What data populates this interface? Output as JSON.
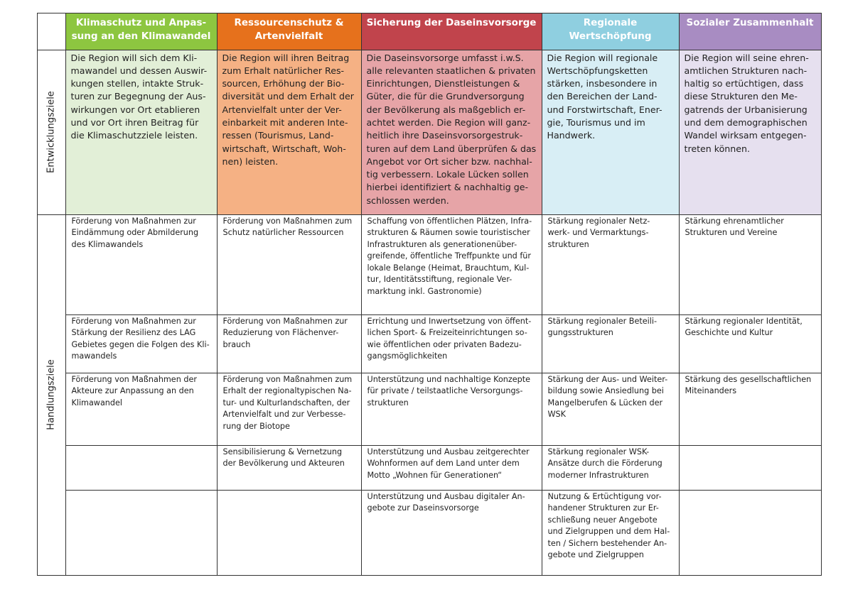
{
  "header": {
    "columns": [
      {
        "lines": [
          "Klimaschutz und Anpas-",
          "sung an den Klimawandel"
        ]
      },
      {
        "lines": [
          "Ressourcenschutz &",
          "Artenvielfalt"
        ]
      },
      {
        "lines": [
          "Sicherung der Daseinsvorsorge"
        ]
      },
      {
        "lines": [
          "Regionale",
          "Wertschöpfung"
        ]
      },
      {
        "lines": [
          "Sozialer Zusammenhalt"
        ]
      }
    ]
  },
  "sections": [
    {
      "label": "Entwicklungsziele",
      "rows": [
        [
          [
            "Die Region will sich dem Kli-",
            "mawandel und dessen Auswir-",
            "kungen stellen, intakte Struk-",
            "turen zur Begegnung der Aus-",
            "wirkungen vor Ort etablieren",
            "und vor Ort ihren Beitrag für",
            "die Klimaschutzziele leisten."
          ],
          [
            "Die Region will ihren Beitrag",
            "zum Erhalt natürlicher Res-",
            "sourcen, Erhöhung der Bio-",
            "diversität und dem Erhalt der",
            "Artenvielfalt unter der Ver-",
            "einbarkeit mit anderen Inte-",
            "ressen (Tourismus, Land-",
            "wirtschaft, Wirtschaft, Woh-",
            "nen) leisten."
          ],
          [
            "Die Daseinsvorsorge umfasst i.w.S.",
            "alle relevanten staatlichen & privaten",
            "Einrichtungen, Dienstleistungen &",
            "Güter, die für die Grundversorgung",
            "der Bevölkerung als maßgeblich er-",
            "achtet werden. Die Region will ganz-",
            "heitlich ihre Daseinsvorsorgestruk-",
            "turen auf dem Land überprüfen & das",
            "Angebot vor Ort sicher bzw. nachhal-",
            "tig verbessern. Lokale Lücken sollen",
            "hierbei identifiziert & nachhaltig ge-",
            "schlossen werden."
          ],
          [
            "Die Region will regionale",
            "Wertschöpfungsketten",
            "stärken, insbesondere in",
            "den Bereichen der Land-",
            "und Forstwirtschaft, Ener-",
            "gie, Tourismus und im",
            "Handwerk."
          ],
          [
            "Die Region will seine ehren-",
            "amtlichen Strukturen nach-",
            "haltig so ertüchtigen, dass",
            "diese Strukturen den Me-",
            "gatrends der Urbanisierung",
            "und dem demographischen",
            "Wandel wirksam entgegen-",
            "treten können."
          ]
        ]
      ]
    },
    {
      "label": "Handlungsziele",
      "rows": [
        [
          [
            "Förderung von Maßnahmen zur",
            "Eindämmung oder Abmilderung",
            "des Klimawandels"
          ],
          [
            "Förderung von Maßnahmen zum",
            "Schutz natürlicher Ressourcen"
          ],
          [
            "Schaffung von öffentlichen Plätzen, Infra-",
            "strukturen & Räumen sowie touristischer",
            "Infrastrukturen als generationenüber-",
            "greifende, öffentliche Treffpunkte und für",
            "lokale Belange (Heimat, Brauchtum, Kul-",
            "tur, Identitätsstiftung, regionale Ver-",
            "marktung inkl. Gastronomie)"
          ],
          [
            "Stärkung regionaler Netz-",
            "werk- und Vermarktungs-",
            "strukturen"
          ],
          [
            "Stärkung ehrenamtlicher",
            "Strukturen und Vereine"
          ]
        ],
        [
          [
            "Förderung von Maßnahmen zur",
            "Stärkung der Resilienz des LAG",
            "Gebietes gegen die Folgen des Kli-",
            "mawandels"
          ],
          [
            "Förderung von Maßnahmen zur",
            "Reduzierung von Flächenver-",
            "brauch"
          ],
          [
            "Errichtung und Inwertsetzung von öffent-",
            "lichen Sport- & Freizeiteinrichtungen so-",
            "wie öffentlichen oder privaten Badezu-",
            "gangsmöglichkeiten"
          ],
          [
            "Stärkung regionaler Beteili-",
            "gungsstrukturen"
          ],
          [
            "Stärkung regionaler Identität,",
            "Geschichte und Kultur"
          ]
        ],
        [
          [
            "Förderung von Maßnahmen der",
            "Akteure zur Anpassung an den",
            "Klimawandel"
          ],
          [
            "Förderung von Maßnahmen zum",
            "Erhalt der regionaltypischen Na-",
            "tur- und Kulturlandschaften, der",
            "Artenvielfalt und zur Verbesse-",
            "rung der Biotope"
          ],
          [
            "Unterstützung und nachhaltige Konzepte",
            "für private / teilstaatliche Versorgungs-",
            "strukturen"
          ],
          [
            "Stärkung der Aus- und Weiter-",
            "bildung sowie Ansiedlung bei",
            "Mangelberufen & Lücken der",
            "WSK"
          ],
          [
            "Stärkung des gesellschaftlichen",
            "Miteinanders"
          ]
        ],
        [
          [],
          [
            "Sensibilisierung & Vernetzung",
            "der Bevölkerung und Akteuren"
          ],
          [
            "Unterstützung und Ausbau zeitgerechter",
            "Wohnformen auf dem Land unter dem",
            "Motto „Wohnen für Generationen“"
          ],
          [
            "Stärkung regionaler WSK-",
            "Ansätze durch die Förderung",
            "moderner Infrastrukturen"
          ],
          []
        ],
        [
          [],
          [],
          [
            "Unterstützung und Ausbau digitaler An-",
            "gebote zur Daseinsvorsorge"
          ],
          [
            "Nutzung & Ertüchtigung vor-",
            "handener Strukturen zur Er-",
            "schließung neuer Angebote",
            "und Zielgruppen und dem Hal-",
            "ten / Sichern bestehender An-",
            "gebote und Zielgruppen"
          ],
          []
        ]
      ]
    }
  ]
}
